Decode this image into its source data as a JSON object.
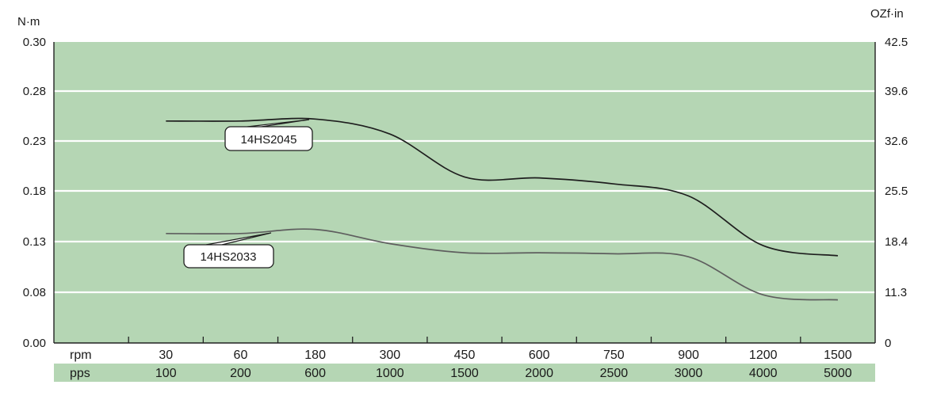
{
  "chart_data": {
    "type": "line",
    "y_left_unit": "N·m",
    "y_right_unit": "OZf·in",
    "y_left_ticks": [
      "0.00",
      "0.08",
      "0.13",
      "0.18",
      "0.23",
      "0.28",
      "0.30"
    ],
    "y_right_ticks": [
      "0",
      "11.3",
      "18.4",
      "25.5",
      "32.6",
      "39.6",
      "42.5"
    ],
    "ylim": [
      0,
      0.3
    ],
    "grid": true,
    "background_color": "#b5d6b4",
    "pps_band_color": "#b5d6b4",
    "rpm_label": "rpm",
    "pps_label": "pps",
    "rpm": [
      "30",
      "60",
      "180",
      "300",
      "450",
      "600",
      "750",
      "900",
      "1200",
      "1500"
    ],
    "pps": [
      "100",
      "200",
      "600",
      "1000",
      "1500",
      "2000",
      "2500",
      "3000",
      "4000",
      "5000"
    ],
    "series": [
      {
        "name": "14HS2045",
        "color": "#1e1e1e",
        "x": [
          30,
          60,
          180,
          300,
          450,
          600,
          750,
          900,
          1200,
          1500
        ],
        "values": [
          0.25,
          0.25,
          0.252,
          0.237,
          0.194,
          0.193,
          0.187,
          0.175,
          0.126,
          0.116
        ]
      },
      {
        "name": "14HS2033",
        "color": "#5e5e5e",
        "x": [
          30,
          60,
          180,
          300,
          450,
          600,
          750,
          900,
          1200,
          1500
        ],
        "values": [
          0.138,
          0.138,
          0.142,
          0.128,
          0.119,
          0.119,
          0.118,
          0.115,
          0.076,
          0.068
        ]
      }
    ]
  }
}
